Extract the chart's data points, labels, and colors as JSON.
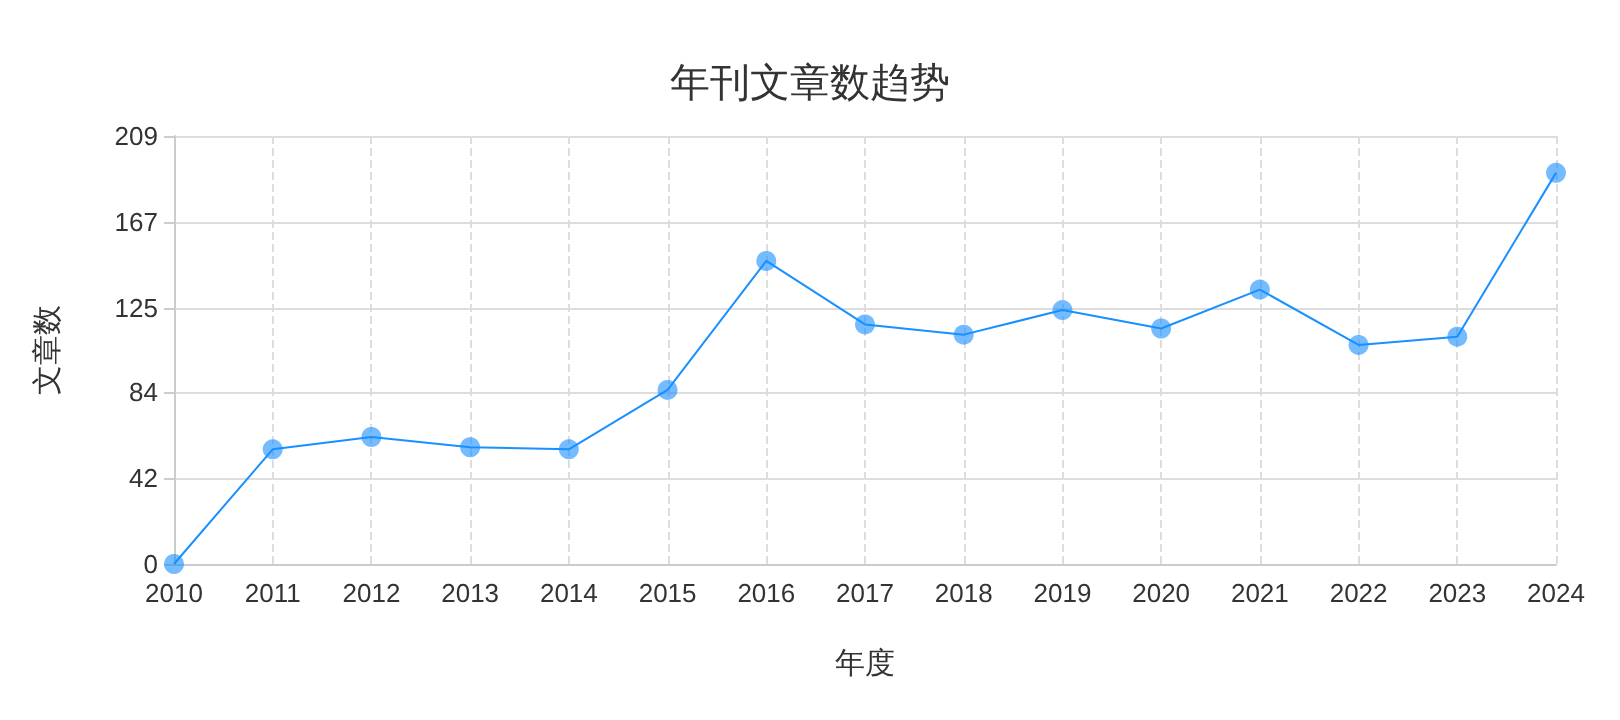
{
  "chart_data": {
    "type": "line",
    "title": "年刊文章数趋势",
    "xlabel": "年度",
    "ylabel": "文章数",
    "categories": [
      "2010",
      "2011",
      "2012",
      "2013",
      "2014",
      "2015",
      "2016",
      "2017",
      "2018",
      "2019",
      "2020",
      "2021",
      "2022",
      "2023",
      "2024"
    ],
    "series": [
      {
        "color": "#1890ff",
        "values": [
          0,
          56,
          62,
          57,
          56,
          85,
          148,
          117,
          112,
          124,
          115,
          134,
          107,
          111,
          191
        ]
      }
    ],
    "ylim": [
      0,
      209
    ],
    "yticks": [
      0,
      42,
      84,
      125,
      167,
      209
    ],
    "grid": true,
    "marker": "circle",
    "line_style": "solid"
  }
}
